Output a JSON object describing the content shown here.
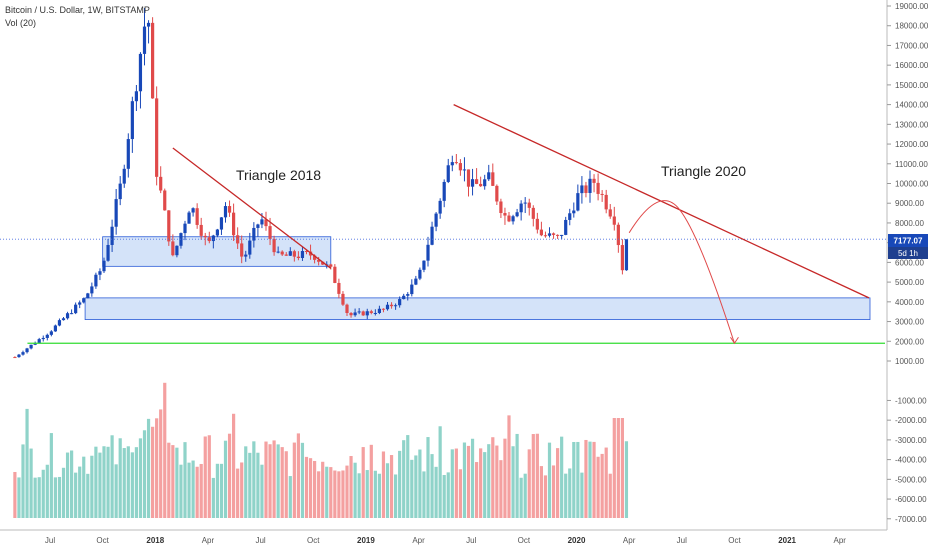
{
  "legend": {
    "title": "Bitcoin / U.S. Dollar, 1W, BITSTAMP",
    "volume": "Vol (20)"
  },
  "price_label": {
    "value": "7177.07",
    "countdown": "5d 1h"
  },
  "colors": {
    "up": "#1848b8",
    "down": "#e04a4a",
    "vol_up": "#8fd3c9",
    "vol_down": "#f4a0a0",
    "zone_fill": "#c9dcf8",
    "zone_stroke": "#2a5bd7",
    "trend": "#c62828",
    "support": "#33dd33",
    "price_line": "#4a6ee0"
  },
  "chart_data": {
    "type": "candlestick",
    "title": "Bitcoin / U.S. Dollar, 1W, BITSTAMP",
    "y_axis": {
      "range": [
        -7500,
        19300
      ],
      "ticks": [
        19000,
        18000,
        17000,
        16000,
        15000,
        14000,
        13000,
        12000,
        11000,
        10000,
        9000,
        8000,
        7000,
        6000,
        5000,
        4000,
        3000,
        2000,
        1000,
        -1000,
        -2000,
        -3000,
        -4000,
        -5000,
        -6000,
        -7000
      ],
      "tick_labels": [
        "19000.00",
        "18000.00",
        "17000.00",
        "16000.00",
        "15000.00",
        "14000.00",
        "13000.00",
        "12000.00",
        "11000.00",
        "10000.00",
        "9000.00",
        "8000.00",
        "7000.00",
        "6000.00",
        "5000.00",
        "4000.00",
        "3000.00",
        "2000.00",
        "1000.00",
        "-1000.00",
        "-2000.00",
        "-3000.00",
        "-4000.00",
        "-5000.00",
        "-6000.00",
        "-7000.00"
      ]
    },
    "x_axis": {
      "labels": [
        {
          "text": "Jul",
          "date": "2017-07"
        },
        {
          "text": "Oct",
          "date": "2017-10"
        },
        {
          "text": "2018",
          "date": "2018-01"
        },
        {
          "text": "Apr",
          "date": "2018-04"
        },
        {
          "text": "Jul",
          "date": "2018-07"
        },
        {
          "text": "Oct",
          "date": "2018-10"
        },
        {
          "text": "2019",
          "date": "2019-01"
        },
        {
          "text": "Apr",
          "date": "2019-04"
        },
        {
          "text": "Jul",
          "date": "2019-07"
        },
        {
          "text": "Oct",
          "date": "2019-10"
        },
        {
          "text": "2020",
          "date": "2020-01"
        },
        {
          "text": "Apr",
          "date": "2020-04"
        },
        {
          "text": "Jul",
          "date": "2020-07"
        },
        {
          "text": "Oct",
          "date": "2020-10"
        },
        {
          "text": "2021",
          "date": "2021-01"
        },
        {
          "text": "Apr",
          "date": "2021-04"
        }
      ]
    },
    "last_price": 7177.07,
    "key_prices": [
      {
        "date": "2017-05",
        "price": 1200
      },
      {
        "date": "2017-07",
        "price": 2500
      },
      {
        "date": "2017-09",
        "price": 4200
      },
      {
        "date": "2017-10",
        "price": 5800
      },
      {
        "date": "2017-11",
        "price": 9800
      },
      {
        "date": "2017-12-17",
        "price": 19100
      },
      {
        "date": "2018-01",
        "price": 11000
      },
      {
        "date": "2018-02",
        "price": 6200
      },
      {
        "date": "2018-03",
        "price": 9000
      },
      {
        "date": "2018-04",
        "price": 6800
      },
      {
        "date": "2018-05",
        "price": 8900
      },
      {
        "date": "2018-06",
        "price": 6100
      },
      {
        "date": "2018-07",
        "price": 8300
      },
      {
        "date": "2018-08",
        "price": 6300
      },
      {
        "date": "2018-10",
        "price": 6400
      },
      {
        "date": "2018-11",
        "price": 5600
      },
      {
        "date": "2018-12",
        "price": 3300
      },
      {
        "date": "2019-02",
        "price": 3600
      },
      {
        "date": "2019-03",
        "price": 4100
      },
      {
        "date": "2019-04",
        "price": 5200
      },
      {
        "date": "2019-05",
        "price": 8500
      },
      {
        "date": "2019-06",
        "price": 11800
      },
      {
        "date": "2019-07",
        "price": 9800
      },
      {
        "date": "2019-08",
        "price": 10200
      },
      {
        "date": "2019-09",
        "price": 8200
      },
      {
        "date": "2019-10",
        "price": 9200
      },
      {
        "date": "2019-11",
        "price": 7400
      },
      {
        "date": "2019-12",
        "price": 7200
      },
      {
        "date": "2020-01",
        "price": 9300
      },
      {
        "date": "2020-02",
        "price": 10100
      },
      {
        "date": "2020-03-09",
        "price": 8000
      },
      {
        "date": "2020-03-16",
        "price": 5300
      },
      {
        "date": "2020-03-23",
        "price": 6500
      },
      {
        "date": "2020-03-30",
        "price": 7177
      }
    ],
    "zones": [
      {
        "from": "2017-10",
        "to": "2018-11",
        "low": 5800,
        "high": 7300
      },
      {
        "from": "2017-09",
        "to": "2021-04",
        "low": 3100,
        "high": 4200
      }
    ],
    "trendlines": [
      {
        "from": {
          "date": "2018-02",
          "price": 11800
        },
        "to": {
          "date": "2018-11",
          "price": 5700
        }
      },
      {
        "from": {
          "date": "2019-06",
          "price": 14000
        },
        "to": {
          "date": "2021-04",
          "price": 4200
        }
      }
    ],
    "support_line": {
      "price": 1900,
      "from": "2017-06",
      "to": "2021-04"
    },
    "projection": {
      "from": {
        "date": "2020-04",
        "price": 7500
      },
      "peak": {
        "date": "2020-06",
        "price": 8700
      },
      "to": {
        "date": "2020-10",
        "price": 1900
      }
    },
    "annotations": [
      "Triangle 2018",
      "Triangle 2020"
    ]
  }
}
